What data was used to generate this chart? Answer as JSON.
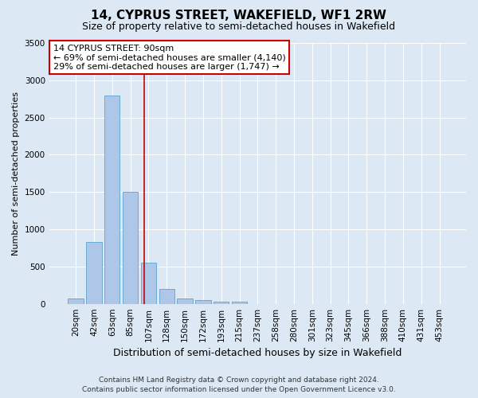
{
  "title": "14, CYPRUS STREET, WAKEFIELD, WF1 2RW",
  "subtitle": "Size of property relative to semi-detached houses in Wakefield",
  "xlabel": "Distribution of semi-detached houses by size in Wakefield",
  "ylabel": "Number of semi-detached properties",
  "categories": [
    "20sqm",
    "42sqm",
    "63sqm",
    "85sqm",
    "107sqm",
    "128sqm",
    "150sqm",
    "172sqm",
    "193sqm",
    "215sqm",
    "237sqm",
    "258sqm",
    "280sqm",
    "301sqm",
    "323sqm",
    "345sqm",
    "366sqm",
    "388sqm",
    "410sqm",
    "431sqm",
    "453sqm"
  ],
  "values": [
    75,
    825,
    2800,
    1500,
    550,
    200,
    75,
    50,
    30,
    25,
    0,
    0,
    0,
    0,
    0,
    0,
    0,
    0,
    0,
    0,
    0
  ],
  "bar_color": "#aec6e8",
  "bar_edgecolor": "#6aaad4",
  "bar_linewidth": 0.7,
  "ylim": [
    0,
    3500
  ],
  "yticks": [
    0,
    500,
    1000,
    1500,
    2000,
    2500,
    3000,
    3500
  ],
  "vline_x": 3.75,
  "vline_color": "#cc0000",
  "vline_linewidth": 1.2,
  "annotation_text": "14 CYPRUS STREET: 90sqm\n← 69% of semi-detached houses are smaller (4,140)\n29% of semi-detached houses are larger (1,747) →",
  "background_color": "#dce9f5",
  "grid_color": "#ffffff",
  "footer_line1": "Contains HM Land Registry data © Crown copyright and database right 2024.",
  "footer_line2": "Contains public sector information licensed under the Open Government Licence v3.0.",
  "title_fontsize": 11,
  "subtitle_fontsize": 9,
  "xlabel_fontsize": 9,
  "ylabel_fontsize": 8,
  "tick_fontsize": 7.5,
  "annotation_fontsize": 8,
  "footer_fontsize": 6.5
}
